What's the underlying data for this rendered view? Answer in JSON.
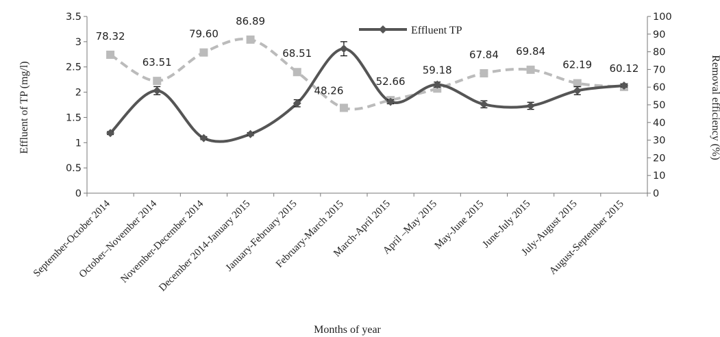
{
  "chart_data": {
    "type": "line",
    "categories": [
      "September-October 2014",
      "October–November 2014",
      "November-December 2014",
      "December 2014-January 2015",
      "January-February 2015",
      "February-March 2015",
      "March-April 2015",
      "April –May 2015",
      "May-June 2015",
      "June-July 2015",
      "July-August 2015",
      "August-September 2015"
    ],
    "xlabel": "Months of year",
    "ylabel_left": "Effluent of TP (mg/l)",
    "ylabel_right": "Removal efficiency (%)",
    "ylim_left": [
      0,
      3.5
    ],
    "ylim_right": [
      0,
      100
    ],
    "yticks_left": [
      "0",
      "0.5",
      "1",
      "1.5",
      "2",
      "2.5",
      "3",
      "3.5"
    ],
    "yticks_right": [
      "0",
      "10",
      "20",
      "30",
      "40",
      "50",
      "60",
      "70",
      "80",
      "90",
      "100"
    ],
    "series": [
      {
        "name": "Effluent TP",
        "axis": "left",
        "color": "#555555",
        "line": "solid",
        "marker": "diamond",
        "values": [
          1.19,
          2.03,
          1.09,
          1.17,
          1.78,
          2.86,
          1.81,
          2.15,
          1.76,
          1.73,
          2.03,
          2.13
        ],
        "error": [
          0.03,
          0.08,
          0.03,
          0.03,
          0.07,
          0.14,
          0.04,
          0.05,
          0.07,
          0.07,
          0.08,
          0.03
        ]
      },
      {
        "axis": "right",
        "color": "#bbbbbb",
        "line": "dashed",
        "marker": "square",
        "values": [
          78.32,
          63.51,
          79.6,
          86.89,
          68.51,
          48.26,
          52.66,
          59.18,
          67.84,
          69.84,
          62.19,
          60.12
        ],
        "labels": [
          "78.32",
          "63.51",
          "79.60",
          "86.89",
          "68.51",
          "48.26",
          "52.66",
          "59.18",
          "67.84",
          "69.84",
          "62.19",
          "60.12"
        ]
      }
    ],
    "legend_position": "top-center",
    "grid": false
  }
}
